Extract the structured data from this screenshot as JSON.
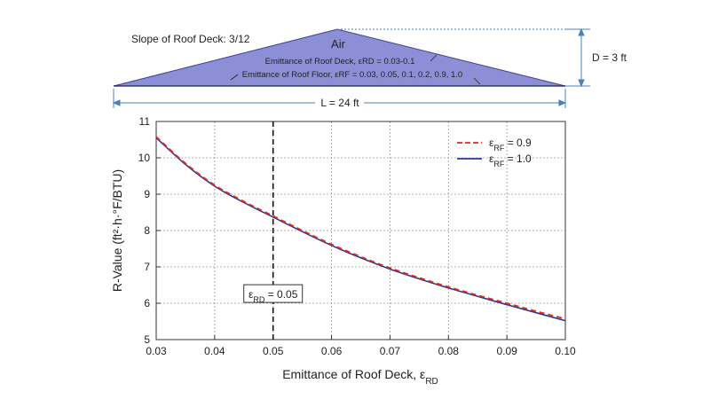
{
  "diagram": {
    "slope_label": "Slope of Roof Deck: 3/12",
    "air_label": "Air",
    "emittance_deck_text": "Emittance of Roof Deck, εRD = 0.03-0.1",
    "emittance_floor_text": "Emittance of Roof Floor, εRF = 0.03, 0.05, 0.1, 0.2, 0.9, 1.0",
    "height_label": "D = 3 ft",
    "length_label": "L = 24 ft",
    "fill_color": "#8c8fd6",
    "stroke_color": "#3a3f8f",
    "dim_color": "#4a7fc0"
  },
  "chart_data": {
    "type": "line",
    "xlabel_main": "Emittance of Roof Deck, ε",
    "xlabel_sub": "RD",
    "ylabel": "R-Value (ft²·h·°F/BTU)",
    "xlim": [
      0.03,
      0.1
    ],
    "ylim": [
      5,
      11
    ],
    "x_ticks": [
      "0.03",
      "0.04",
      "0.05",
      "0.06",
      "0.07",
      "0.08",
      "0.09",
      "0.10"
    ],
    "y_ticks": [
      "5",
      "6",
      "7",
      "8",
      "9",
      "10",
      "11"
    ],
    "grid": true,
    "legend_position": "top-right",
    "series": [
      {
        "name_main": "ε",
        "name_sub": "RF",
        "name_value": " = 0.9",
        "color": "#e8281e",
        "dash": "dashed",
        "x": [
          0.03,
          0.035,
          0.04,
          0.045,
          0.05,
          0.055,
          0.06,
          0.065,
          0.07,
          0.075,
          0.08,
          0.085,
          0.09,
          0.095,
          0.1
        ],
        "y": [
          10.58,
          9.85,
          9.25,
          8.8,
          8.4,
          8.0,
          7.62,
          7.28,
          6.97,
          6.7,
          6.45,
          6.22,
          6.0,
          5.78,
          5.57
        ]
      },
      {
        "name_main": "ε",
        "name_sub": "RF",
        "name_value": " = 1.0",
        "color": "#2b3a8f",
        "dash": "solid",
        "x": [
          0.03,
          0.035,
          0.04,
          0.045,
          0.05,
          0.055,
          0.06,
          0.065,
          0.07,
          0.075,
          0.08,
          0.085,
          0.09,
          0.095,
          0.1
        ],
        "y": [
          10.55,
          9.82,
          9.22,
          8.77,
          8.37,
          7.97,
          7.59,
          7.25,
          6.94,
          6.67,
          6.42,
          6.19,
          5.96,
          5.74,
          5.52
        ]
      }
    ],
    "vline": {
      "x": 0.05,
      "label_main": "ε",
      "label_sub": "RD",
      "label_value": " = 0.05"
    }
  }
}
